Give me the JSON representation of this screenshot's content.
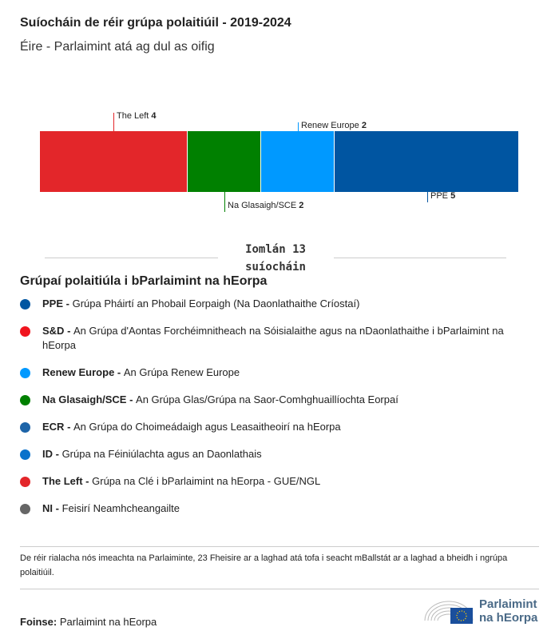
{
  "title": "Suíocháin de réir grúpa polaitiúil - 2019-2024",
  "subtitle": "Éire - Parlaimint atá ag dul as oifig",
  "chart_data": {
    "type": "bar",
    "stacked": true,
    "orientation": "horizontal",
    "categories": [
      "The Left",
      "Na Glasaigh/SCE",
      "Renew Europe",
      "PPE"
    ],
    "values": [
      4,
      2,
      2,
      5
    ],
    "colors": [
      "#e3262a",
      "#008000",
      "#0099ff",
      "#0055a1"
    ],
    "total_label": "Iomlán 13 suíocháin"
  },
  "legend": {
    "title": "Grúpaí polaitiúla i bParlaimint na hEorpa",
    "items": [
      {
        "abbr": "PPE",
        "name": "Grúpa Pháirtí an Phobail Eorpaigh (Na Daonlathaithe Críostaí)",
        "color": "#0055a1"
      },
      {
        "abbr": "S&D",
        "name": "An Grúpa d'Aontas Forchéimnitheach na Sóisialaithe agus na nDaonlathaithe i bParlaimint na hEorpa",
        "color": "#f0141e"
      },
      {
        "abbr": "Renew Europe",
        "name": "An Grúpa Renew Europe",
        "color": "#0099ff"
      },
      {
        "abbr": "Na Glasaigh/SCE",
        "name": "An Grúpa Glas/Grúpa na Saor-Comhghuaillíochta Eorpaí",
        "color": "#008000"
      },
      {
        "abbr": "ECR",
        "name": "An Grúpa do Choimeádaigh agus Leasaitheoirí na hEorpa",
        "color": "#1d64a8"
      },
      {
        "abbr": "ID",
        "name": "Grúpa na Féiniúlachta agus an Daonlathais",
        "color": "#0a72cb"
      },
      {
        "abbr": "The Left",
        "name": "Grúpa na Clé i bParlaimint na hEorpa - GUE/NGL",
        "color": "#e3262a"
      },
      {
        "abbr": "NI",
        "name": "Feisirí Neamhcheangailte",
        "color": "#666666"
      }
    ]
  },
  "note": "De réir rialacha nós imeachta na Parlaiminte, 23 Fheisire ar a laghad atá tofa i seacht mBallstát ar a laghad a bheidh i ngrúpa polaitiúil.",
  "source": {
    "label": "Foinse:",
    "value": "Parlaimint na hEorpa"
  },
  "logo": {
    "line1": "Parlaimint",
    "line2": "na hEorpa"
  }
}
